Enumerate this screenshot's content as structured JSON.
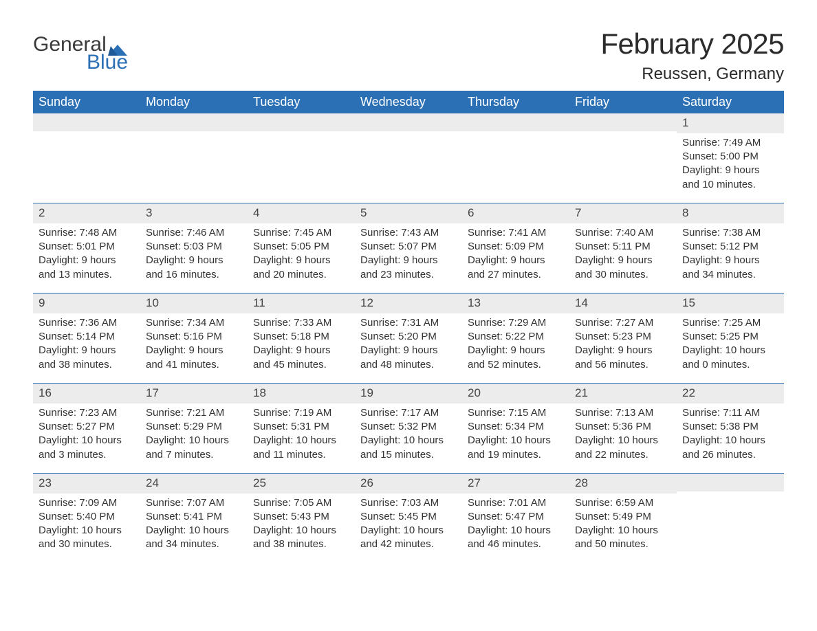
{
  "logo": {
    "word1": "General",
    "word2": "Blue",
    "icon_color": "#2b6fb5"
  },
  "title": {
    "month": "February 2025",
    "location": "Reussen, Germany"
  },
  "colors": {
    "header_bg": "#2b6fb5",
    "header_text": "#ffffff",
    "daynum_bg": "#ececec",
    "border": "#2b6fb5",
    "text": "#333333",
    "background": "#ffffff"
  },
  "day_names": [
    "Sunday",
    "Monday",
    "Tuesday",
    "Wednesday",
    "Thursday",
    "Friday",
    "Saturday"
  ],
  "weeks": [
    [
      {
        "day": "",
        "sunrise": "",
        "sunset": "",
        "daylight1": "",
        "daylight2": ""
      },
      {
        "day": "",
        "sunrise": "",
        "sunset": "",
        "daylight1": "",
        "daylight2": ""
      },
      {
        "day": "",
        "sunrise": "",
        "sunset": "",
        "daylight1": "",
        "daylight2": ""
      },
      {
        "day": "",
        "sunrise": "",
        "sunset": "",
        "daylight1": "",
        "daylight2": ""
      },
      {
        "day": "",
        "sunrise": "",
        "sunset": "",
        "daylight1": "",
        "daylight2": ""
      },
      {
        "day": "",
        "sunrise": "",
        "sunset": "",
        "daylight1": "",
        "daylight2": ""
      },
      {
        "day": "1",
        "sunrise": "Sunrise: 7:49 AM",
        "sunset": "Sunset: 5:00 PM",
        "daylight1": "Daylight: 9 hours",
        "daylight2": "and 10 minutes."
      }
    ],
    [
      {
        "day": "2",
        "sunrise": "Sunrise: 7:48 AM",
        "sunset": "Sunset: 5:01 PM",
        "daylight1": "Daylight: 9 hours",
        "daylight2": "and 13 minutes."
      },
      {
        "day": "3",
        "sunrise": "Sunrise: 7:46 AM",
        "sunset": "Sunset: 5:03 PM",
        "daylight1": "Daylight: 9 hours",
        "daylight2": "and 16 minutes."
      },
      {
        "day": "4",
        "sunrise": "Sunrise: 7:45 AM",
        "sunset": "Sunset: 5:05 PM",
        "daylight1": "Daylight: 9 hours",
        "daylight2": "and 20 minutes."
      },
      {
        "day": "5",
        "sunrise": "Sunrise: 7:43 AM",
        "sunset": "Sunset: 5:07 PM",
        "daylight1": "Daylight: 9 hours",
        "daylight2": "and 23 minutes."
      },
      {
        "day": "6",
        "sunrise": "Sunrise: 7:41 AM",
        "sunset": "Sunset: 5:09 PM",
        "daylight1": "Daylight: 9 hours",
        "daylight2": "and 27 minutes."
      },
      {
        "day": "7",
        "sunrise": "Sunrise: 7:40 AM",
        "sunset": "Sunset: 5:11 PM",
        "daylight1": "Daylight: 9 hours",
        "daylight2": "and 30 minutes."
      },
      {
        "day": "8",
        "sunrise": "Sunrise: 7:38 AM",
        "sunset": "Sunset: 5:12 PM",
        "daylight1": "Daylight: 9 hours",
        "daylight2": "and 34 minutes."
      }
    ],
    [
      {
        "day": "9",
        "sunrise": "Sunrise: 7:36 AM",
        "sunset": "Sunset: 5:14 PM",
        "daylight1": "Daylight: 9 hours",
        "daylight2": "and 38 minutes."
      },
      {
        "day": "10",
        "sunrise": "Sunrise: 7:34 AM",
        "sunset": "Sunset: 5:16 PM",
        "daylight1": "Daylight: 9 hours",
        "daylight2": "and 41 minutes."
      },
      {
        "day": "11",
        "sunrise": "Sunrise: 7:33 AM",
        "sunset": "Sunset: 5:18 PM",
        "daylight1": "Daylight: 9 hours",
        "daylight2": "and 45 minutes."
      },
      {
        "day": "12",
        "sunrise": "Sunrise: 7:31 AM",
        "sunset": "Sunset: 5:20 PM",
        "daylight1": "Daylight: 9 hours",
        "daylight2": "and 48 minutes."
      },
      {
        "day": "13",
        "sunrise": "Sunrise: 7:29 AM",
        "sunset": "Sunset: 5:22 PM",
        "daylight1": "Daylight: 9 hours",
        "daylight2": "and 52 minutes."
      },
      {
        "day": "14",
        "sunrise": "Sunrise: 7:27 AM",
        "sunset": "Sunset: 5:23 PM",
        "daylight1": "Daylight: 9 hours",
        "daylight2": "and 56 minutes."
      },
      {
        "day": "15",
        "sunrise": "Sunrise: 7:25 AM",
        "sunset": "Sunset: 5:25 PM",
        "daylight1": "Daylight: 10 hours",
        "daylight2": "and 0 minutes."
      }
    ],
    [
      {
        "day": "16",
        "sunrise": "Sunrise: 7:23 AM",
        "sunset": "Sunset: 5:27 PM",
        "daylight1": "Daylight: 10 hours",
        "daylight2": "and 3 minutes."
      },
      {
        "day": "17",
        "sunrise": "Sunrise: 7:21 AM",
        "sunset": "Sunset: 5:29 PM",
        "daylight1": "Daylight: 10 hours",
        "daylight2": "and 7 minutes."
      },
      {
        "day": "18",
        "sunrise": "Sunrise: 7:19 AM",
        "sunset": "Sunset: 5:31 PM",
        "daylight1": "Daylight: 10 hours",
        "daylight2": "and 11 minutes."
      },
      {
        "day": "19",
        "sunrise": "Sunrise: 7:17 AM",
        "sunset": "Sunset: 5:32 PM",
        "daylight1": "Daylight: 10 hours",
        "daylight2": "and 15 minutes."
      },
      {
        "day": "20",
        "sunrise": "Sunrise: 7:15 AM",
        "sunset": "Sunset: 5:34 PM",
        "daylight1": "Daylight: 10 hours",
        "daylight2": "and 19 minutes."
      },
      {
        "day": "21",
        "sunrise": "Sunrise: 7:13 AM",
        "sunset": "Sunset: 5:36 PM",
        "daylight1": "Daylight: 10 hours",
        "daylight2": "and 22 minutes."
      },
      {
        "day": "22",
        "sunrise": "Sunrise: 7:11 AM",
        "sunset": "Sunset: 5:38 PM",
        "daylight1": "Daylight: 10 hours",
        "daylight2": "and 26 minutes."
      }
    ],
    [
      {
        "day": "23",
        "sunrise": "Sunrise: 7:09 AM",
        "sunset": "Sunset: 5:40 PM",
        "daylight1": "Daylight: 10 hours",
        "daylight2": "and 30 minutes."
      },
      {
        "day": "24",
        "sunrise": "Sunrise: 7:07 AM",
        "sunset": "Sunset: 5:41 PM",
        "daylight1": "Daylight: 10 hours",
        "daylight2": "and 34 minutes."
      },
      {
        "day": "25",
        "sunrise": "Sunrise: 7:05 AM",
        "sunset": "Sunset: 5:43 PM",
        "daylight1": "Daylight: 10 hours",
        "daylight2": "and 38 minutes."
      },
      {
        "day": "26",
        "sunrise": "Sunrise: 7:03 AM",
        "sunset": "Sunset: 5:45 PM",
        "daylight1": "Daylight: 10 hours",
        "daylight2": "and 42 minutes."
      },
      {
        "day": "27",
        "sunrise": "Sunrise: 7:01 AM",
        "sunset": "Sunset: 5:47 PM",
        "daylight1": "Daylight: 10 hours",
        "daylight2": "and 46 minutes."
      },
      {
        "day": "28",
        "sunrise": "Sunrise: 6:59 AM",
        "sunset": "Sunset: 5:49 PM",
        "daylight1": "Daylight: 10 hours",
        "daylight2": "and 50 minutes."
      },
      {
        "day": "",
        "sunrise": "",
        "sunset": "",
        "daylight1": "",
        "daylight2": ""
      }
    ]
  ]
}
